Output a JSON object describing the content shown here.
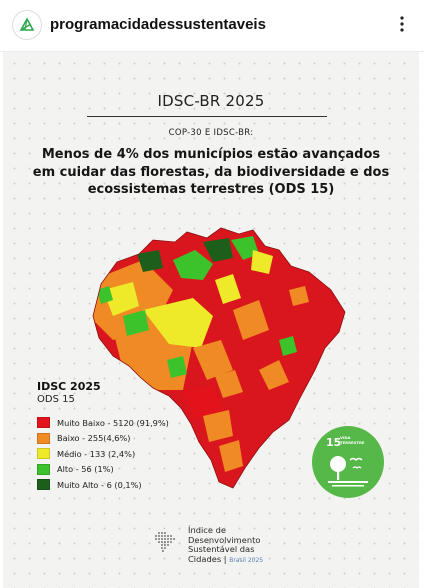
{
  "header": {
    "username": "programacidadessustentaveis",
    "avatar_icon": "leaf-logo-icon",
    "more_icon": "more-vertical-icon"
  },
  "post": {
    "title": "IDSC-BR 2025",
    "subtitle": "COP-30 E IDSC-BR:",
    "headline_lines": [
      "Menos de 4% dos municípios estão avançados",
      "em cuidar das florestas, da biodiversidade e dos",
      "ecossistemas terrestres (ODS 15)"
    ],
    "legend": {
      "title": "IDSC 2025",
      "subtitle": "ODS 15",
      "items": [
        {
          "label": "Muito Baixo - 5120 (91,9%)",
          "color": "#e3131b"
        },
        {
          "label": "Baixo - 255(4,6%)",
          "color": "#f08a24"
        },
        {
          "label": "Médio - 133 (2,4%)",
          "color": "#eeea2a"
        },
        {
          "label": "Alto - 56 (1%)",
          "color": "#3cc22a"
        },
        {
          "label": "Muito Alto - 6 (0,1%)",
          "color": "#1c5e1a"
        }
      ]
    },
    "sdg_badge": {
      "number": "15",
      "text_lines": [
        "VIDA",
        "TERRESTRE"
      ],
      "color": "#56b849",
      "icon": "tree-bird-icon"
    },
    "footer": {
      "lines": [
        "Índice de",
        "Desenvolvimento",
        "Sustentável das",
        "Cidades |"
      ],
      "brand_year": "Brasil 2025",
      "logo_icon": "brazil-dots-map-icon"
    }
  }
}
